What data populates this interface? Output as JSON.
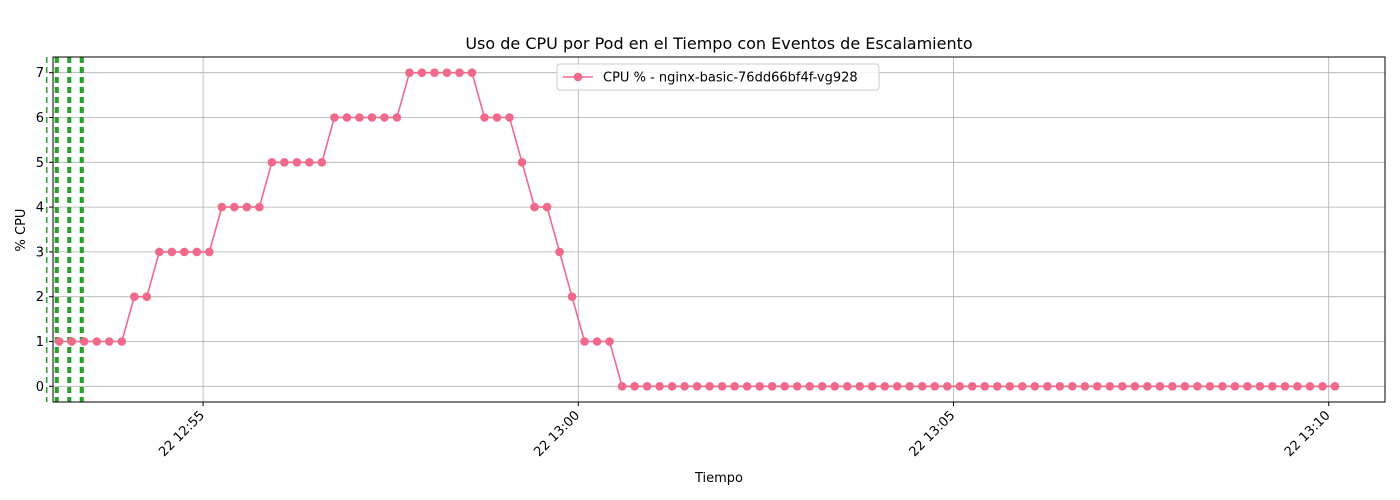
{
  "chart_data": {
    "type": "line",
    "title": "Uso de CPU por Pod en el Tiempo con Eventos de Escalamiento",
    "xlabel": "Tiempo",
    "ylabel": "% CPU",
    "xlim": [
      "12:53:00",
      "13:10:45"
    ],
    "ylim": [
      -0.35,
      7.35
    ],
    "yticks": [
      0,
      1,
      2,
      3,
      4,
      5,
      6,
      7
    ],
    "xticks": [
      {
        "time": "12:55:00",
        "label": "22 12:55"
      },
      {
        "time": "13:00:00",
        "label": "22 13:00"
      },
      {
        "time": "13:05:00",
        "label": "22 13:05"
      },
      {
        "time": "13:10:00",
        "label": "22 13:10"
      }
    ],
    "grid": true,
    "legend_position": "top-center",
    "series": [
      {
        "name": "CPU % - nginx-basic-76dd66bf4f-vg928",
        "color": "#f0698a",
        "start_time": "12:53:05",
        "interval_seconds": 10,
        "values": [
          1,
          1,
          1,
          1,
          1,
          1,
          2,
          2,
          3,
          3,
          3,
          3,
          3,
          4,
          4,
          4,
          4,
          5,
          5,
          5,
          5,
          5,
          6,
          6,
          6,
          6,
          6,
          6,
          7,
          7,
          7,
          7,
          7,
          7,
          6,
          6,
          6,
          5,
          4,
          4,
          3,
          2,
          1,
          1,
          1,
          0,
          0,
          0,
          0,
          0,
          0,
          0,
          0,
          0,
          0,
          0,
          0,
          0,
          0,
          0,
          0,
          0,
          0,
          0,
          0,
          0,
          0,
          0,
          0,
          0,
          0,
          0,
          0,
          0,
          0,
          0,
          0,
          0,
          0,
          0,
          0,
          0,
          0,
          0,
          0,
          0,
          0,
          0,
          0,
          0,
          0,
          0,
          0,
          0,
          0,
          0,
          0,
          0,
          0,
          0,
          0,
          0,
          0
        ]
      }
    ],
    "events": [
      {
        "time": "12:52:55",
        "color": "#2ca02c",
        "count": 1
      },
      {
        "time": "12:53:03",
        "color": "#2ca02c",
        "count": 3
      },
      {
        "time": "12:53:13",
        "color": "#2ca02c",
        "count": 3
      },
      {
        "time": "12:53:23",
        "color": "#2ca02c",
        "count": 3
      }
    ]
  }
}
